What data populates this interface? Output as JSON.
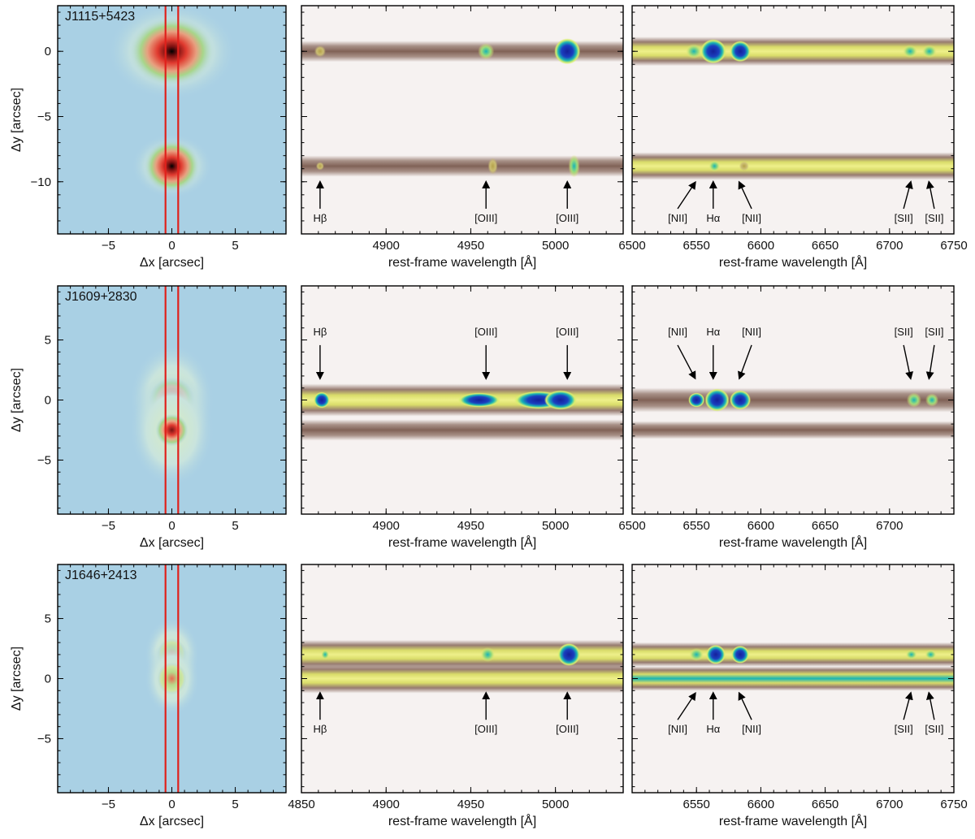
{
  "chart_data": [
    {
      "type": "other",
      "rows": [
        {
          "object": "J1115+5423",
          "image_panel": {
            "xlabel": "Δx [arcsec]",
            "ylabel": "Δy [arcsec]",
            "x_ticks": [
              -5,
              0,
              5
            ],
            "y_ticks": [
              0,
              -5,
              -10
            ],
            "xlim": [
              -9,
              9
            ],
            "ylim": [
              -14,
              3.5
            ],
            "sources_dy": [
              0,
              -8.8
            ],
            "slit_dx": [
              -0.5,
              0.5
            ]
          },
          "spec_blue": {
            "xlabel": "rest-frame wavelength [Å]",
            "x_ticks": [
              4900,
              4950,
              5000
            ],
            "xlim": [
              4850,
              5040
            ],
            "lines": [
              {
                "label": "Hβ",
                "wavelength": 4861
              },
              {
                "label": "[OIII]",
                "wavelength": 4959
              },
              {
                "label": "[OIII]",
                "wavelength": 5007
              }
            ]
          },
          "spec_red": {
            "xlabel": "rest-frame wavelength [Å]",
            "x_ticks": [
              6500,
              6550,
              6600,
              6650,
              6700,
              6750
            ],
            "xlim": [
              6500,
              6750
            ],
            "lines": [
              {
                "label": "[NII]",
                "wavelength": 6548
              },
              {
                "label": "Hα",
                "wavelength": 6563
              },
              {
                "label": "[NII]",
                "wavelength": 6584
              },
              {
                "label": "[SII]",
                "wavelength": 6716
              },
              {
                "label": "[SII]",
                "wavelength": 6731
              }
            ]
          }
        },
        {
          "object": "J1609+2830",
          "image_panel": {
            "xlabel": "Δx [arcsec]",
            "ylabel": "Δy [arcsec]",
            "x_ticks": [
              -5,
              0,
              5
            ],
            "y_ticks": [
              5,
              0,
              -5
            ],
            "xlim": [
              -9,
              9
            ],
            "ylim": [
              -9.5,
              9.5
            ],
            "sources_dy": [
              0,
              -2.5
            ],
            "slit_dx": [
              -0.5,
              0.5
            ]
          },
          "spec_blue": {
            "xlabel": "rest-frame wavelength [Å]",
            "x_ticks": [
              4900,
              4950,
              5000
            ],
            "xlim": [
              4850,
              5040
            ],
            "lines": [
              {
                "label": "Hβ",
                "wavelength": 4861
              },
              {
                "label": "[OIII]",
                "wavelength": 4959
              },
              {
                "label": "[OIII]",
                "wavelength": 5007
              }
            ]
          },
          "spec_red": {
            "xlabel": "rest-frame wavelength [Å]",
            "x_ticks": [
              6500,
              6550,
              6600,
              6650,
              6700
            ],
            "xlim": [
              6500,
              6750
            ],
            "lines": [
              {
                "label": "[NII]",
                "wavelength": 6548
              },
              {
                "label": "Hα",
                "wavelength": 6563
              },
              {
                "label": "[NII]",
                "wavelength": 6584
              },
              {
                "label": "[SII]",
                "wavelength": 6716
              },
              {
                "label": "[SII]",
                "wavelength": 6731
              }
            ]
          }
        },
        {
          "object": "J1646+2413",
          "image_panel": {
            "xlabel": "Δx [arcsec]",
            "ylabel": "Δy [arcsec]",
            "x_ticks": [
              -5,
              0,
              5
            ],
            "y_ticks": [
              5,
              0,
              -5
            ],
            "xlim": [
              -9,
              9
            ],
            "ylim": [
              -9.5,
              9.5
            ],
            "sources_dy": [
              2,
              0
            ],
            "slit_dx": [
              -0.5,
              0.5
            ]
          },
          "spec_blue": {
            "xlabel": "rest-frame wavelength [Å]",
            "x_ticks": [
              4850,
              4900,
              4950,
              5000
            ],
            "xlim": [
              4850,
              5040
            ],
            "lines": [
              {
                "label": "Hβ",
                "wavelength": 4861
              },
              {
                "label": "[OIII]",
                "wavelength": 4959
              },
              {
                "label": "[OIII]",
                "wavelength": 5007
              }
            ]
          },
          "spec_red": {
            "xlabel": "rest-frame wavelength [Å]",
            "x_ticks": [
              6550,
              6600,
              6650,
              6700,
              6750
            ],
            "xlim": [
              6500,
              6750
            ],
            "lines": [
              {
                "label": "[NII]",
                "wavelength": 6548
              },
              {
                "label": "Hα",
                "wavelength": 6563
              },
              {
                "label": "[NII]",
                "wavelength": 6584
              },
              {
                "label": "[SII]",
                "wavelength": 6716
              },
              {
                "label": "[SII]",
                "wavelength": 6731
              }
            ]
          }
        }
      ]
    }
  ],
  "colors": {
    "sky": "#a9d0e4",
    "halo_green": "#a7d68a",
    "core_red": "#e03a2f",
    "slit": "#e0201b",
    "trace_brown": "#8c6e62",
    "trace_yellow": "#e6ea76",
    "line_blue": "#1a2fa8",
    "line_cyan": "#19b4b4"
  }
}
